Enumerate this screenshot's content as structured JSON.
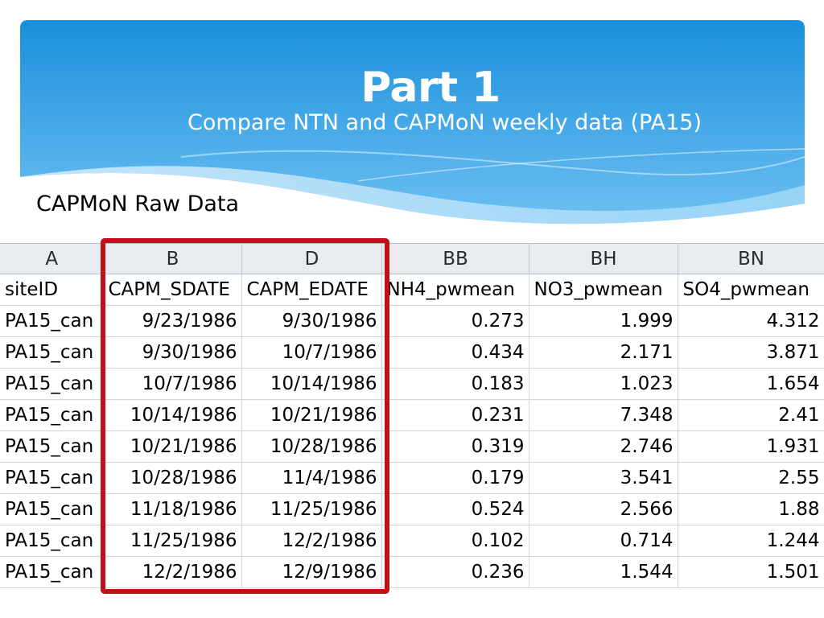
{
  "slide": {
    "title": "Part 1",
    "subtitle": "Compare NTN and CAPMoN weekly data (PA15)",
    "section_label": "CAPMoN Raw Data",
    "colors": {
      "banner_top": "#1a8fdc",
      "banner_bottom": "#7cc8f4",
      "highlight_box": "#c0101a",
      "header_fill": "#e8ecf1"
    }
  },
  "sheet": {
    "column_letters": [
      "A",
      "B",
      "D",
      "BB",
      "BH",
      "BN"
    ],
    "headers": [
      "siteID",
      "CAPM_SDATE",
      "CAPM_EDATE",
      "NH4_pwmean",
      "NO3_pwmean",
      "SO4_pwmean"
    ],
    "rows": [
      [
        "PA15_can",
        "9/23/1986",
        "9/30/1986",
        "0.273",
        "1.999",
        "4.312"
      ],
      [
        "PA15_can",
        "9/30/1986",
        "10/7/1986",
        "0.434",
        "2.171",
        "3.871"
      ],
      [
        "PA15_can",
        "10/7/1986",
        "10/14/1986",
        "0.183",
        "1.023",
        "1.654"
      ],
      [
        "PA15_can",
        "10/14/1986",
        "10/21/1986",
        "0.231",
        "7.348",
        "2.41"
      ],
      [
        "PA15_can",
        "10/21/1986",
        "10/28/1986",
        "0.319",
        "2.746",
        "1.931"
      ],
      [
        "PA15_can",
        "10/28/1986",
        "11/4/1986",
        "0.179",
        "3.541",
        "2.55"
      ],
      [
        "PA15_can",
        "11/18/1986",
        "11/25/1986",
        "0.524",
        "2.566",
        "1.88"
      ],
      [
        "PA15_can",
        "11/25/1986",
        "12/2/1986",
        "0.102",
        "0.714",
        "1.244"
      ],
      [
        "PA15_can",
        "12/2/1986",
        "12/9/1986",
        "0.236",
        "1.544",
        "1.501"
      ]
    ]
  }
}
